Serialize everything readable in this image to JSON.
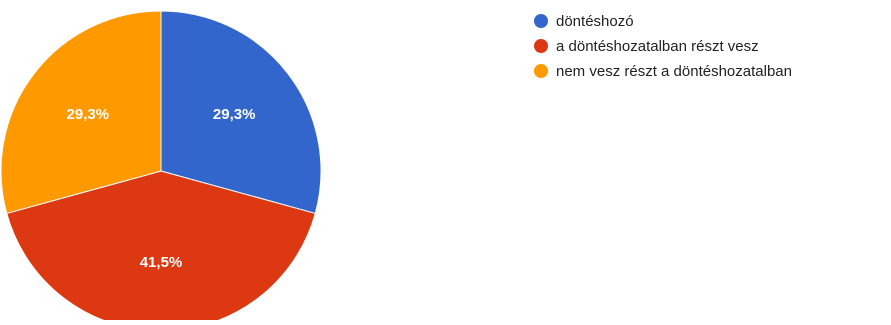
{
  "chart_data": {
    "type": "pie",
    "start_angle_deg": 90,
    "direction": "clockwise",
    "slices": [
      {
        "label": "döntéshozó",
        "value": 29.3,
        "display": "29,3%",
        "color": "#3366cc"
      },
      {
        "label": "a döntéshozatalban részt vesz",
        "value": 41.5,
        "display": "41,5%",
        "color": "#dc3912"
      },
      {
        "label": "nem vesz részt a döntéshozatalban",
        "value": 29.3,
        "display": "29,3%",
        "color": "#ff9900"
      }
    ],
    "legend_position": "right"
  }
}
